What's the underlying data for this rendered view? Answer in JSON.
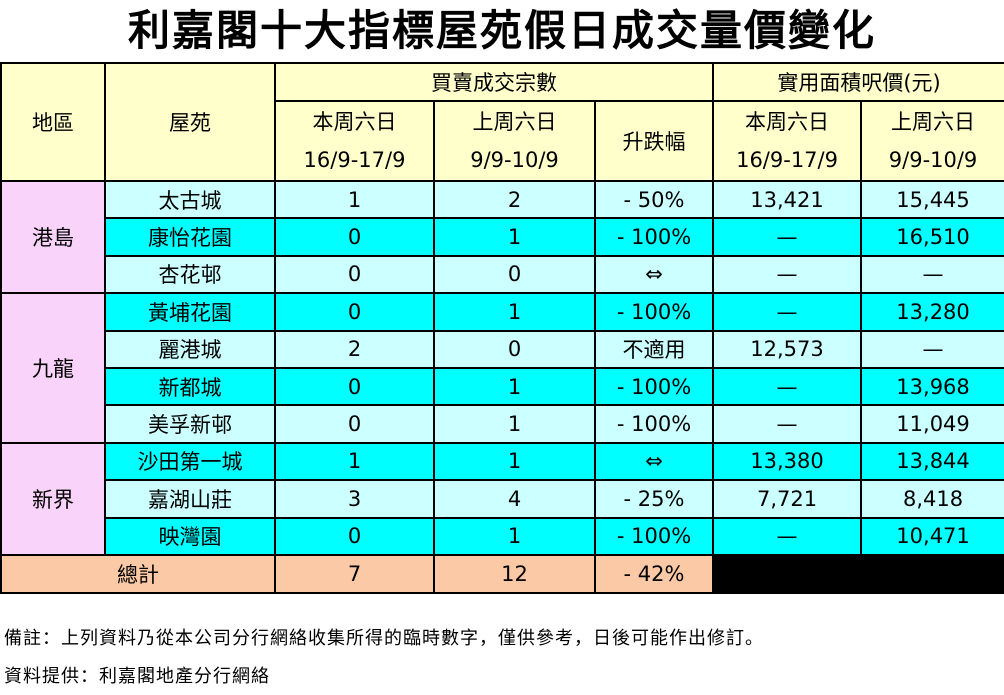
{
  "title": "利嘉閣十大指標屋苑假日成交量價變化",
  "table": {
    "header": {
      "region": "地區",
      "estate": "屋苑",
      "volume": "買賣成交宗數",
      "price": "實用面積呎價(元)",
      "volume_this": [
        "本周六日",
        "16/9-17/9"
      ],
      "volume_last": [
        "上周六日",
        "9/9-10/9"
      ],
      "change": "升跌幅",
      "price_this": [
        "本周六日",
        "16/9-17/9"
      ],
      "price_last": [
        "上周六日",
        "9/9-10/9"
      ]
    },
    "groups": [
      {
        "region": "港島",
        "rows": [
          [
            "太古城",
            "1",
            "2",
            "- 50%",
            "13,421",
            "15,445"
          ],
          [
            "康怡花園",
            "0",
            "1",
            "- 100%",
            "—",
            "16,510"
          ],
          [
            "杏花邨",
            "0",
            "0",
            "⇔",
            "—",
            "—"
          ]
        ]
      },
      {
        "region": "九龍",
        "rows": [
          [
            "黃埔花園",
            "0",
            "1",
            "- 100%",
            "—",
            "13,280"
          ],
          [
            "麗港城",
            "2",
            "0",
            "不適用",
            "12,573",
            "—"
          ],
          [
            "新都城",
            "0",
            "1",
            "- 100%",
            "—",
            "13,968"
          ],
          [
            "美孚新邨",
            "0",
            "1",
            "- 100%",
            "—",
            "11,049"
          ]
        ]
      },
      {
        "region": "新界",
        "rows": [
          [
            "沙田第一城",
            "1",
            "1",
            "⇔",
            "13,380",
            "13,844"
          ],
          [
            "嘉湖山莊",
            "3",
            "4",
            "- 25%",
            "7,721",
            "8,418"
          ],
          [
            "映灣園",
            "0",
            "1",
            "- 100%",
            "—",
            "10,471"
          ]
        ]
      }
    ],
    "total": [
      "總計",
      "7",
      "12",
      "- 42%"
    ]
  },
  "notes": [
    "備註：上列資料乃從本公司分行網絡收集所得的臨時數字，僅供參考，日後可能作出修訂。",
    "資料提供：利嘉閣地產分行網絡"
  ]
}
